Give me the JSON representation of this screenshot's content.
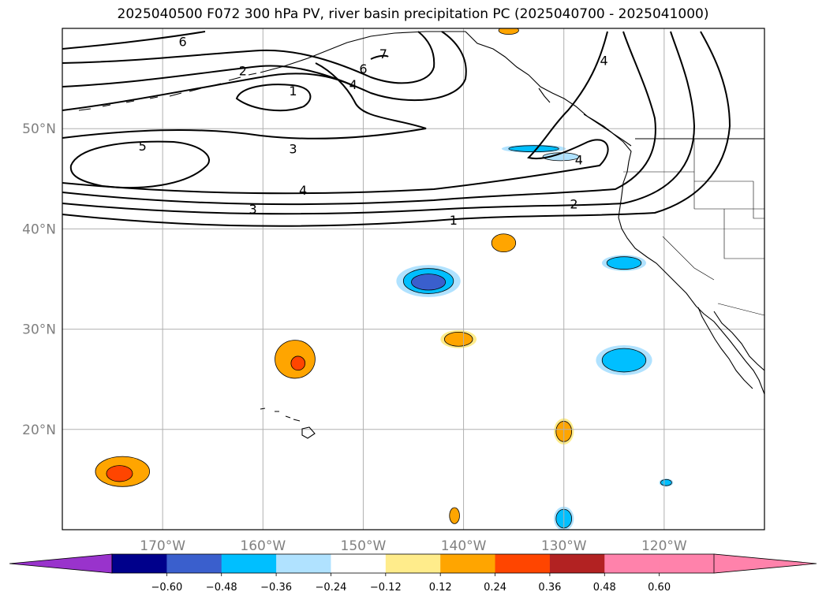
{
  "title": "2025040500 F072 300 hPa PV, river basin precipitation PC (2025040700 - 2025041000)",
  "map": {
    "lon_range": [
      -180,
      -110
    ],
    "lat_range": [
      10,
      60
    ],
    "lat_ticks": [
      "20°N",
      "30°N",
      "40°N",
      "50°N"
    ],
    "lon_ticks": [
      "170°W",
      "160°W",
      "150°W",
      "140°W",
      "130°W",
      "120°W"
    ],
    "grid": true
  },
  "contour_labels": [
    {
      "text": "6",
      "lon": -168,
      "lat": 58.7
    },
    {
      "text": "2",
      "lon": -162,
      "lat": 55.8
    },
    {
      "text": "6",
      "lon": -150,
      "lat": 56.0
    },
    {
      "text": "7",
      "lon": -148,
      "lat": 57.5
    },
    {
      "text": "4",
      "lon": -151,
      "lat": 54.4
    },
    {
      "text": "1",
      "lon": -157,
      "lat": 53.8
    },
    {
      "text": "5",
      "lon": -172,
      "lat": 48.3
    },
    {
      "text": "3",
      "lon": -157,
      "lat": 48.0
    },
    {
      "text": "4",
      "lon": -126,
      "lat": 56.8
    },
    {
      "text": "4",
      "lon": -128.5,
      "lat": 46.9
    },
    {
      "text": "4",
      "lon": -156,
      "lat": 43.9
    },
    {
      "text": "3",
      "lon": -161,
      "lat": 42.0
    },
    {
      "text": "2",
      "lon": -129.0,
      "lat": 42.5
    },
    {
      "text": "1",
      "lon": -141,
      "lat": 40.9
    }
  ],
  "precip_blobs": [
    {
      "lon": -143.5,
      "lat": 34.8,
      "rx": 3.2,
      "ry": 1.6,
      "levels": [
        -0.24,
        -0.36
      ]
    },
    {
      "lon": -143.5,
      "lat": 34.7,
      "rx": 1.7,
      "ry": 0.8,
      "levels": [
        -0.48
      ]
    },
    {
      "lon": -156.8,
      "lat": 27.0,
      "rx": 2.0,
      "ry": 1.9,
      "levels": [
        0.24
      ]
    },
    {
      "lon": -156.5,
      "lat": 26.6,
      "rx": 0.7,
      "ry": 0.7,
      "levels": [
        0.36
      ]
    },
    {
      "lon": -140.5,
      "lat": 29.0,
      "rx": 1.8,
      "ry": 0.9,
      "levels": [
        0.12,
        0.24
      ]
    },
    {
      "lon": -174.0,
      "lat": 15.8,
      "rx": 2.7,
      "ry": 1.5,
      "levels": [
        0.24
      ]
    },
    {
      "lon": -174.3,
      "lat": 15.6,
      "rx": 1.3,
      "ry": 0.8,
      "levels": [
        0.36
      ]
    },
    {
      "lon": -124.0,
      "lat": 26.9,
      "rx": 2.8,
      "ry": 1.5,
      "levels": [
        -0.24,
        -0.36
      ]
    },
    {
      "lon": -124.0,
      "lat": 36.6,
      "rx": 2.2,
      "ry": 0.8,
      "levels": [
        -0.24,
        -0.36
      ]
    },
    {
      "lon": -136.0,
      "lat": 38.6,
      "rx": 1.2,
      "ry": 0.9,
      "levels": [
        0.24
      ]
    },
    {
      "lon": -130.0,
      "lat": 19.8,
      "rx": 1.0,
      "ry": 1.3,
      "levels": [
        0.12,
        0.24
      ]
    },
    {
      "lon": -140.9,
      "lat": 11.4,
      "rx": 0.5,
      "ry": 0.8,
      "levels": [
        0.24
      ]
    },
    {
      "lon": -130.0,
      "lat": 11.1,
      "rx": 1.0,
      "ry": 1.2,
      "levels": [
        -0.24,
        -0.36
      ]
    },
    {
      "lon": -119.8,
      "lat": 14.7,
      "rx": 0.7,
      "ry": 0.4,
      "levels": [
        -0.24,
        -0.36
      ]
    },
    {
      "lon": -133.0,
      "lat": 48.0,
      "rx": 3.2,
      "ry": 0.4,
      "levels": [
        -0.24,
        -0.36
      ]
    },
    {
      "lon": -130.3,
      "lat": 47.2,
      "rx": 1.8,
      "ry": 0.4,
      "levels": [
        -0.24
      ]
    },
    {
      "lon": -135.5,
      "lat": 59.8,
      "rx": 1.0,
      "ry": 0.4,
      "levels": [
        0.24
      ]
    }
  ],
  "colorbar": {
    "tick_labels": [
      "−0.60",
      "−0.48",
      "−0.36",
      "−0.24",
      "−0.12",
      "0.12",
      "0.24",
      "0.36",
      "0.48",
      "0.60"
    ],
    "colors": [
      "#9933cc",
      "#00008b",
      "#3a5fcd",
      "#00bfff",
      "#b0e2ff",
      "#ffffff",
      "#ffec8b",
      "#ffa500",
      "#ff4500",
      "#b22222",
      "#ff82ab",
      "#ff82ab"
    ],
    "under_color": "#9933cc",
    "over_color": "#ff82ab"
  }
}
